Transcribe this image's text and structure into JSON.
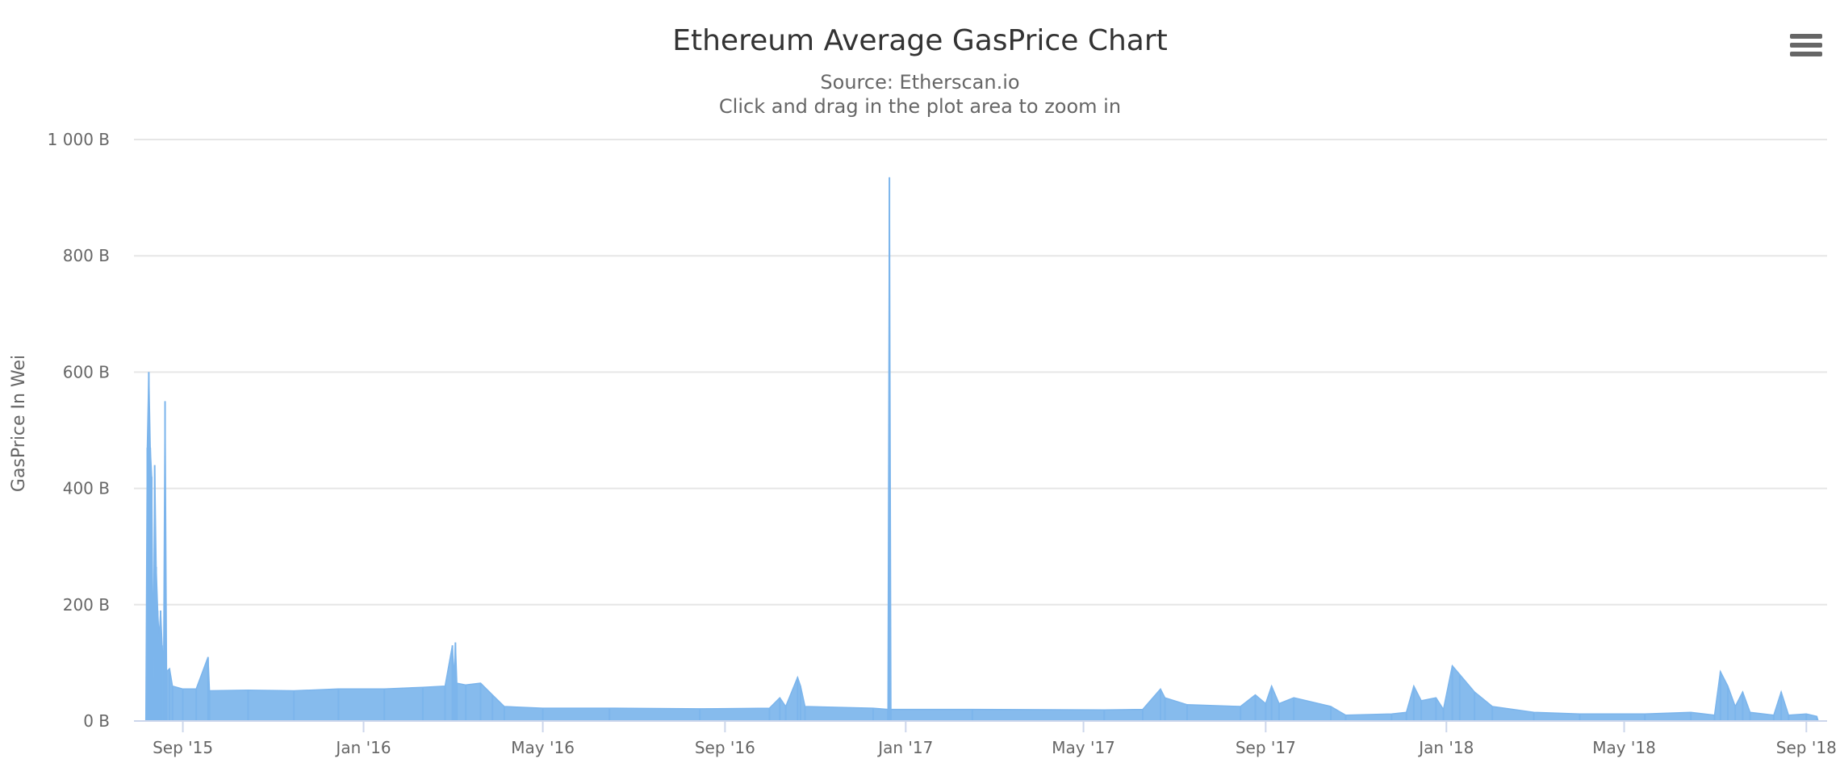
{
  "chart_data": {
    "type": "area",
    "title": "Ethereum Average GasPrice Chart",
    "subtitle": "Source: Etherscan.io",
    "subtitle2": "Click and drag in the plot area to zoom in",
    "ylabel": "GasPrice In Wei",
    "xlabel": "",
    "ylim": [
      0,
      1000
    ],
    "xlim": [
      "2015-07-30",
      "2018-09-15"
    ],
    "grid": true,
    "legend": "none",
    "color": "#7cb5ec",
    "y_ticks": [
      {
        "value": 0,
        "label": "0 B"
      },
      {
        "value": 200,
        "label": "200 B"
      },
      {
        "value": 400,
        "label": "400 B"
      },
      {
        "value": 600,
        "label": "600 B"
      },
      {
        "value": 800,
        "label": "800 B"
      },
      {
        "value": 1000,
        "label": "1 000 B"
      }
    ],
    "x_ticks": [
      {
        "date": "2015-09-01",
        "label": "Sep '15"
      },
      {
        "date": "2016-01-01",
        "label": "Jan '16"
      },
      {
        "date": "2016-05-01",
        "label": "May '16"
      },
      {
        "date": "2016-09-01",
        "label": "Sep '16"
      },
      {
        "date": "2017-01-01",
        "label": "Jan '17"
      },
      {
        "date": "2017-05-01",
        "label": "May '17"
      },
      {
        "date": "2017-09-01",
        "label": "Sep '17"
      },
      {
        "date": "2018-01-01",
        "label": "Jan '18"
      },
      {
        "date": "2018-05-01",
        "label": "May '18"
      },
      {
        "date": "2018-09-01",
        "label": "Sep '18"
      }
    ],
    "series": [
      {
        "points": [
          [
            "2015-08-07",
            0
          ],
          [
            "2015-08-08",
            470
          ],
          [
            "2015-08-09",
            600
          ],
          [
            "2015-08-10",
            470
          ],
          [
            "2015-08-11",
            420
          ],
          [
            "2015-08-12",
            75
          ],
          [
            "2015-08-13",
            440
          ],
          [
            "2015-08-14",
            265
          ],
          [
            "2015-08-15",
            190
          ],
          [
            "2015-08-16",
            140
          ],
          [
            "2015-08-17",
            190
          ],
          [
            "2015-08-18",
            130
          ],
          [
            "2015-08-19",
            90
          ],
          [
            "2015-08-20",
            550
          ],
          [
            "2015-08-21",
            85
          ],
          [
            "2015-08-23",
            90
          ],
          [
            "2015-08-25",
            60
          ],
          [
            "2015-09-01",
            55
          ],
          [
            "2015-09-10",
            55
          ],
          [
            "2015-09-18",
            110
          ],
          [
            "2015-09-19",
            52
          ],
          [
            "2015-10-15",
            53
          ],
          [
            "2015-11-15",
            52
          ],
          [
            "2015-12-15",
            55
          ],
          [
            "2016-01-15",
            55
          ],
          [
            "2016-02-10",
            58
          ],
          [
            "2016-02-25",
            60
          ],
          [
            "2016-03-01",
            130
          ],
          [
            "2016-03-02",
            70
          ],
          [
            "2016-03-03",
            135
          ],
          [
            "2016-03-04",
            65
          ],
          [
            "2016-03-10",
            62
          ],
          [
            "2016-03-20",
            65
          ],
          [
            "2016-03-28",
            45
          ],
          [
            "2016-04-05",
            25
          ],
          [
            "2016-05-01",
            22
          ],
          [
            "2016-06-15",
            22
          ],
          [
            "2016-08-15",
            21
          ],
          [
            "2016-10-01",
            22
          ],
          [
            "2016-10-08",
            40
          ],
          [
            "2016-10-12",
            25
          ],
          [
            "2016-10-20",
            75
          ],
          [
            "2016-10-22",
            60
          ],
          [
            "2016-10-25",
            25
          ],
          [
            "2016-12-10",
            22
          ],
          [
            "2016-12-20",
            20
          ],
          [
            "2016-12-21",
            935
          ],
          [
            "2016-12-22",
            20
          ],
          [
            "2017-02-15",
            20
          ],
          [
            "2017-05-15",
            19
          ],
          [
            "2017-06-10",
            20
          ],
          [
            "2017-06-22",
            55
          ],
          [
            "2017-06-25",
            40
          ],
          [
            "2017-07-10",
            28
          ],
          [
            "2017-08-15",
            25
          ],
          [
            "2017-08-25",
            45
          ],
          [
            "2017-09-01",
            30
          ],
          [
            "2017-09-05",
            60
          ],
          [
            "2017-09-10",
            30
          ],
          [
            "2017-09-20",
            40
          ],
          [
            "2017-10-15",
            25
          ],
          [
            "2017-10-25",
            10
          ],
          [
            "2017-11-25",
            12
          ],
          [
            "2017-12-05",
            15
          ],
          [
            "2017-12-10",
            60
          ],
          [
            "2017-12-15",
            35
          ],
          [
            "2017-12-25",
            40
          ],
          [
            "2017-12-30",
            20
          ],
          [
            "2018-01-05",
            95
          ],
          [
            "2018-01-10",
            80
          ],
          [
            "2018-01-20",
            50
          ],
          [
            "2018-02-01",
            25
          ],
          [
            "2018-03-01",
            15
          ],
          [
            "2018-04-01",
            12
          ],
          [
            "2018-05-15",
            12
          ],
          [
            "2018-06-15",
            15
          ],
          [
            "2018-07-01",
            10
          ],
          [
            "2018-07-05",
            85
          ],
          [
            "2018-07-10",
            60
          ],
          [
            "2018-07-15",
            25
          ],
          [
            "2018-07-20",
            50
          ],
          [
            "2018-07-25",
            15
          ],
          [
            "2018-08-10",
            10
          ],
          [
            "2018-08-15",
            50
          ],
          [
            "2018-08-20",
            10
          ],
          [
            "2018-09-01",
            12
          ],
          [
            "2018-09-08",
            8
          ],
          [
            "2018-09-09",
            0
          ]
        ]
      }
    ]
  }
}
